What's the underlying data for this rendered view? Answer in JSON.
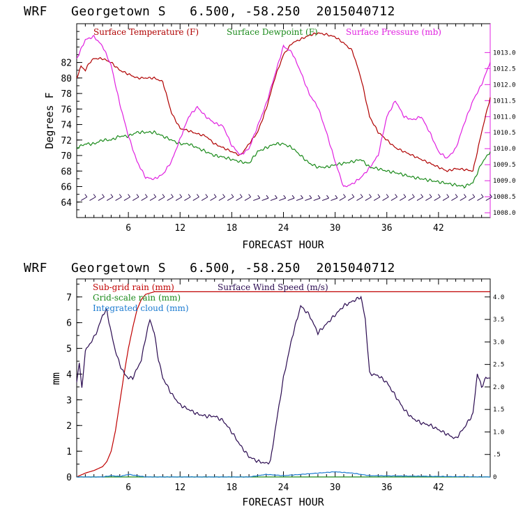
{
  "panel1": {
    "title": "WRF   Georgetown S   6.500, -58.250  2015040712",
    "xlabel": "FORECAST HOUR",
    "ylabel": "Degrees F",
    "legend": [
      "Surface Temperature (F)",
      "Surface Dewpoint (F)",
      "Surface Pressure (mb)"
    ]
  },
  "panel2": {
    "title": "WRF   Georgetown S   6.500, -58.250  2015040712",
    "xlabel": "FORECAST HOUR",
    "ylabel": "mm",
    "legend": [
      "Sub-grid rain (mm)",
      "Grid-scale rain (mm)",
      "Integrated cloud (mm)",
      "Surface Wind Speed (m/s)"
    ]
  },
  "colors": {
    "temperature": "#b00000",
    "dewpoint": "#1a8a1a",
    "pressure": "#e020e0",
    "subgrid_rain": "#c00000",
    "gridscale_rain": "#1a8a1a",
    "cloud": "#1a7ad0",
    "wind": "#2a0a50",
    "wind_barbs": "#2a0a50"
  },
  "chart_data": [
    {
      "type": "line",
      "title": "WRF   Georgetown S   6.500, -58.250  2015040712",
      "xlabel": "FORECAST HOUR",
      "ylabel": "Degrees F",
      "xlim": [
        0,
        48
      ],
      "ylim": [
        62,
        87
      ],
      "xticks": [
        "6",
        "12",
        "18",
        "24",
        "30",
        "36",
        "42"
      ],
      "yticks": [
        "64",
        "66",
        "68",
        "70",
        "72",
        "74",
        "76",
        "78",
        "80",
        "82"
      ],
      "y2label": "",
      "y2lim": [
        1007.85,
        1013.9
      ],
      "y2ticks": [
        "1008.0",
        "1008.5",
        "1009.0",
        "1009.5",
        "1010.0",
        "1010.5",
        "1011.0",
        "1011.5",
        "1012.0",
        "1012.5",
        "1013.0"
      ],
      "series": [
        {
          "name": "Surface Temperature (F)",
          "axis": "left",
          "x": [
            0,
            0.5,
            1,
            1.5,
            2,
            3,
            4,
            5,
            6,
            7,
            8,
            9,
            10,
            11,
            12,
            13,
            14,
            15,
            16,
            17,
            18,
            19,
            20,
            21,
            22,
            23,
            24,
            25,
            26,
            27,
            28,
            29,
            30,
            31,
            32,
            33,
            34,
            35,
            36,
            37,
            38,
            39,
            40,
            41,
            42,
            43,
            44,
            45,
            46,
            47,
            48
          ],
          "values": [
            80,
            81.5,
            81,
            82,
            82.5,
            82.5,
            82,
            81,
            80.5,
            80,
            80,
            80,
            79.5,
            75.5,
            73.5,
            73.2,
            72.8,
            72.5,
            71.5,
            71,
            70.5,
            70,
            71.5,
            73,
            76,
            80,
            83,
            84.5,
            85,
            85.5,
            85.8,
            85.6,
            85.3,
            84.5,
            83.5,
            80,
            75,
            73,
            72,
            71,
            70.5,
            70,
            69.5,
            69,
            68.5,
            68,
            68.3,
            68.2,
            68,
            73,
            77.5
          ]
        },
        {
          "name": "Surface Dewpoint (F)",
          "axis": "left",
          "x": [
            0,
            1,
            2,
            3,
            4,
            5,
            6,
            7,
            8,
            9,
            10,
            11,
            12,
            13,
            14,
            15,
            16,
            17,
            18,
            19,
            20,
            21,
            22,
            23,
            24,
            25,
            26,
            27,
            28,
            29,
            30,
            31,
            32,
            33,
            34,
            35,
            36,
            37,
            38,
            39,
            40,
            41,
            42,
            43,
            44,
            45,
            46,
            47,
            48
          ],
          "values": [
            71,
            71.5,
            71.5,
            72,
            72,
            72.5,
            72.5,
            73,
            73,
            73,
            72.5,
            72,
            71.5,
            71.5,
            71,
            70.5,
            70,
            69.8,
            69.5,
            69.2,
            69,
            70.5,
            71,
            71.5,
            71.5,
            71,
            70,
            69,
            68.5,
            68.5,
            68.8,
            69,
            69.2,
            69.5,
            68.5,
            68.3,
            68,
            67.8,
            67.5,
            67.2,
            67,
            66.8,
            66.6,
            66.4,
            66.2,
            66,
            66.5,
            69,
            70.5
          ]
        },
        {
          "name": "Surface Pressure (mb)",
          "axis": "right",
          "x": [
            0,
            0.5,
            1,
            2,
            3,
            4,
            5,
            6,
            7,
            8,
            9,
            10,
            11,
            12,
            13,
            14,
            15,
            16,
            17,
            18,
            19,
            20,
            21,
            22,
            23,
            24,
            25,
            26,
            27,
            28,
            29,
            30,
            31,
            32,
            33,
            34,
            35,
            36,
            37,
            38,
            39,
            40,
            41,
            42,
            43,
            44,
            45,
            46,
            47,
            48
          ],
          "values": [
            1012.8,
            1013.1,
            1013.4,
            1013.5,
            1013.2,
            1012.6,
            1011.4,
            1010.4,
            1009.6,
            1009.1,
            1009.05,
            1009.2,
            1009.6,
            1010.3,
            1011.0,
            1011.3,
            1011.0,
            1010.8,
            1010.7,
            1010.1,
            1009.8,
            1010.0,
            1010.7,
            1011.4,
            1012.3,
            1013.2,
            1013.0,
            1012.4,
            1011.7,
            1011.3,
            1010.5,
            1009.6,
            1008.8,
            1008.9,
            1009.1,
            1009.4,
            1009.8,
            1011.0,
            1011.5,
            1011.0,
            1010.9,
            1011.0,
            1010.5,
            1009.9,
            1009.7,
            1010.0,
            1010.8,
            1011.5,
            1012.0,
            1012.7
          ]
        }
      ],
      "annotations": "surface wind barbs along bottom of panel"
    },
    {
      "type": "line",
      "title": "WRF   Georgetown S   6.500, -58.250  2015040712",
      "xlabel": "FORECAST HOUR",
      "ylabel": "mm",
      "xlim": [
        0,
        48
      ],
      "ylim": [
        0,
        7.7
      ],
      "xticks": [
        "6",
        "12",
        "18",
        "24",
        "30",
        "36",
        "42"
      ],
      "yticks": [
        "0",
        "1",
        "2",
        "3",
        "4",
        "5",
        "6",
        "7"
      ],
      "y2lim": [
        0,
        4.4
      ],
      "y2ticks": [
        "0",
        ".5",
        "1.0",
        "1.5",
        "2.0",
        "2.5",
        "3.0",
        "3.5",
        "4.0"
      ],
      "series": [
        {
          "name": "Sub-grid rain (mm)",
          "axis": "left",
          "x": [
            0,
            1,
            2,
            3,
            3.5,
            4,
            4.5,
            5,
            5.5,
            6,
            6.5,
            7,
            7.5,
            8,
            8.5,
            9,
            12,
            18,
            24,
            30,
            36,
            42,
            48
          ],
          "values": [
            0,
            0.15,
            0.25,
            0.4,
            0.6,
            1.0,
            1.8,
            2.9,
            4.0,
            5.0,
            5.8,
            6.5,
            6.9,
            7.1,
            7.15,
            7.2,
            7.2,
            7.2,
            7.2,
            7.2,
            7.2,
            7.2,
            7.2
          ]
        },
        {
          "name": "Grid-scale rain (mm)",
          "axis": "left",
          "x": [
            0,
            48
          ],
          "values": [
            0,
            0
          ]
        },
        {
          "name": "Integrated cloud (mm)",
          "axis": "left",
          "x": [
            0,
            3,
            4,
            5,
            6,
            7,
            8,
            20,
            21,
            22,
            24,
            26,
            28,
            30,
            32,
            34,
            48
          ],
          "values": [
            0,
            0,
            0.05,
            0.02,
            0.1,
            0.05,
            0,
            0,
            0.05,
            0.1,
            0.05,
            0.1,
            0.15,
            0.2,
            0.15,
            0.05,
            0
          ]
        },
        {
          "name": "Surface Wind Speed (m/s)",
          "axis": "right",
          "x": [
            0,
            0.3,
            0.6,
            1,
            1.5,
            2,
            2.5,
            3,
            3.5,
            4,
            4.5,
            5,
            5.5,
            6,
            6.5,
            7,
            7.5,
            8,
            8.5,
            9,
            9.5,
            10,
            11,
            12,
            13,
            14,
            15,
            16,
            17,
            18,
            19,
            20,
            21,
            22,
            22.5,
            23,
            24,
            25,
            26,
            27,
            28,
            29,
            30,
            31,
            32,
            33,
            33.5,
            34,
            35,
            36,
            37,
            38,
            39,
            40,
            41,
            42,
            43,
            44,
            45,
            46,
            46.5,
            47,
            47.5,
            48
          ],
          "values": [
            2.1,
            2.5,
            2.0,
            2.8,
            2.95,
            3.1,
            3.3,
            3.6,
            3.7,
            3.2,
            2.8,
            2.5,
            2.3,
            2.2,
            2.2,
            2.4,
            2.6,
            3.1,
            3.5,
            3.2,
            2.6,
            2.2,
            1.85,
            1.6,
            1.5,
            1.4,
            1.35,
            1.35,
            1.25,
            1.0,
            0.7,
            0.45,
            0.35,
            0.3,
            0.35,
            1.0,
            2.2,
            3.1,
            3.8,
            3.6,
            3.2,
            3.4,
            3.6,
            3.8,
            3.9,
            4.0,
            3.5,
            2.3,
            2.25,
            2.1,
            1.8,
            1.5,
            1.3,
            1.2,
            1.15,
            1.05,
            0.95,
            0.85,
            1.1,
            1.4,
            2.3,
            2.0,
            2.2,
            2.2
          ]
        }
      ]
    }
  ]
}
